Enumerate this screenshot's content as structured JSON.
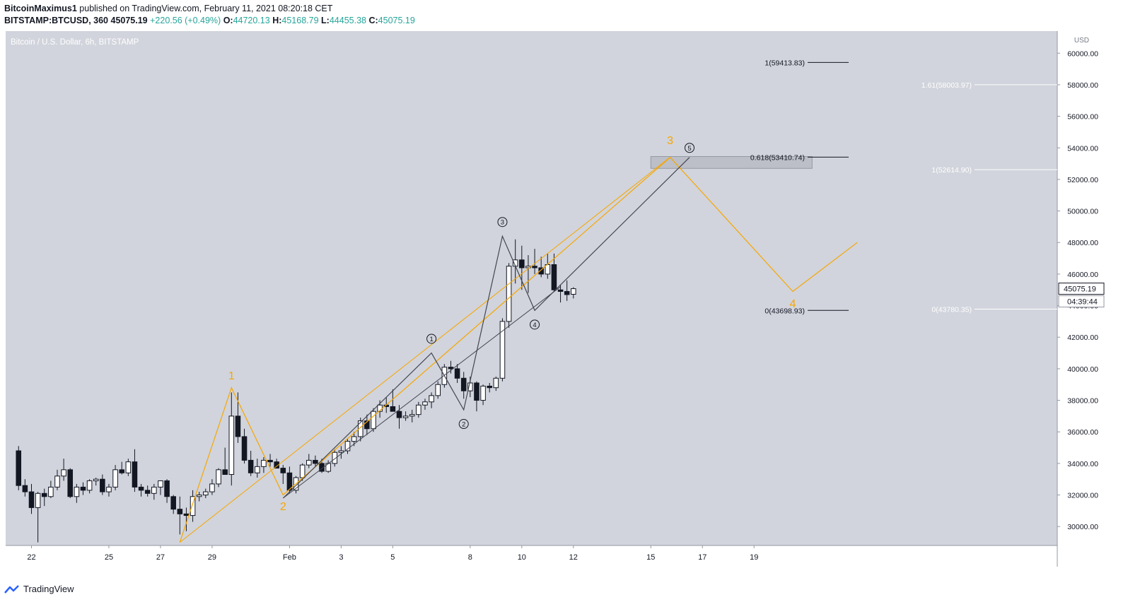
{
  "header": {
    "author": "BitcoinMaximus1",
    "published": "published on TradingView.com, February 11, 2021 08:20:18 CET",
    "symbol": "BITSTAMP:BTCUSD, 360",
    "last": "45075.19",
    "change": "+220.56 (+0.49%)",
    "o_label": "O:",
    "o": "44720.13",
    "h_label": "H:",
    "h": "45168.79",
    "l_label": "L:",
    "l": "44455.38",
    "c_label": "C:",
    "c": "45075.19"
  },
  "footer": {
    "brand": "TradingView"
  },
  "chart_data": {
    "type": "candlestick",
    "title": "Bitcoin / U.S. Dollar, 6h, BITSTAMP",
    "currency": "USD",
    "ylim": [
      28800,
      61400
    ],
    "xlim": [
      -2.0,
      161.0
    ],
    "y_ticks": [
      30000,
      32000,
      34000,
      36000,
      38000,
      40000,
      42000,
      44000,
      46000,
      48000,
      50000,
      52000,
      54000,
      56000,
      58000,
      60000
    ],
    "x_ticks": [
      {
        "label": "22",
        "x": 2
      },
      {
        "label": "25",
        "x": 14
      },
      {
        "label": "27",
        "x": 22
      },
      {
        "label": "29",
        "x": 30
      },
      {
        "label": "Feb",
        "x": 42
      },
      {
        "label": "3",
        "x": 50
      },
      {
        "label": "5",
        "x": 58
      },
      {
        "label": "8",
        "x": 70
      },
      {
        "label": "10",
        "x": 78
      },
      {
        "label": "12",
        "x": 86
      },
      {
        "label": "15",
        "x": 98
      },
      {
        "label": "17",
        "x": 106
      },
      {
        "label": "19",
        "x": 114
      }
    ],
    "last_price_label": "45075.19",
    "countdown_label": "04:39:44",
    "candles": [
      [
        34800,
        35100,
        32300,
        32600
      ],
      [
        32600,
        33000,
        31900,
        32200
      ],
      [
        32200,
        32700,
        30800,
        31200
      ],
      [
        31200,
        32200,
        29000,
        32100
      ],
      [
        32100,
        32400,
        31300,
        31900
      ],
      [
        31900,
        32900,
        31800,
        32500
      ],
      [
        32500,
        33600,
        32300,
        33200
      ],
      [
        33200,
        34300,
        32900,
        33600
      ],
      [
        33600,
        33700,
        31800,
        31900
      ],
      [
        31900,
        32700,
        31500,
        32500
      ],
      [
        32500,
        32800,
        32000,
        32300
      ],
      [
        32300,
        33000,
        32100,
        32900
      ],
      [
        32900,
        33100,
        32600,
        33000
      ],
      [
        33000,
        33300,
        32000,
        32200
      ],
      [
        32200,
        32700,
        31900,
        32500
      ],
      [
        32500,
        33900,
        32300,
        33600
      ],
      [
        33600,
        34100,
        33300,
        33400
      ],
      [
        33400,
        34300,
        33200,
        34100
      ],
      [
        34100,
        34900,
        32200,
        32500
      ],
      [
        32500,
        32700,
        31900,
        32300
      ],
      [
        32300,
        32600,
        31900,
        32100
      ],
      [
        32100,
        32700,
        31700,
        32500
      ],
      [
        32500,
        32900,
        32000,
        32900
      ],
      [
        32900,
        33000,
        31500,
        31900
      ],
      [
        31900,
        32000,
        30800,
        31100
      ],
      [
        31100,
        31900,
        29500,
        30800
      ],
      [
        30800,
        31200,
        29700,
        30700
      ],
      [
        30700,
        32300,
        30300,
        31900
      ],
      [
        31900,
        32200,
        31600,
        32000
      ],
      [
        32000,
        32400,
        31800,
        32200
      ],
      [
        32200,
        33000,
        32000,
        32700
      ],
      [
        32700,
        33700,
        32500,
        33600
      ],
      [
        33600,
        35000,
        33300,
        33300
      ],
      [
        33300,
        38500,
        32600,
        37000
      ],
      [
        37000,
        38500,
        35300,
        35700
      ],
      [
        35700,
        36200,
        34000,
        34200
      ],
      [
        34200,
        34800,
        33200,
        33400
      ],
      [
        33400,
        34300,
        33100,
        33800
      ],
      [
        33800,
        34400,
        33400,
        34200
      ],
      [
        34200,
        34600,
        33800,
        34100
      ],
      [
        34100,
        34300,
        33700,
        33700
      ],
      [
        33700,
        33900,
        32700,
        33400
      ],
      [
        33400,
        33800,
        32100,
        32300
      ],
      [
        32300,
        33200,
        32100,
        33100
      ],
      [
        33100,
        34000,
        32900,
        33900
      ],
      [
        33900,
        34600,
        33700,
        34200
      ],
      [
        34200,
        34500,
        33800,
        34000
      ],
      [
        34000,
        34300,
        33400,
        33500
      ],
      [
        33500,
        34200,
        33400,
        34000
      ],
      [
        34000,
        34900,
        33800,
        34700
      ],
      [
        34700,
        35100,
        34300,
        34800
      ],
      [
        34800,
        35600,
        34600,
        35400
      ],
      [
        35400,
        36000,
        35100,
        35700
      ],
      [
        35700,
        36900,
        35400,
        36700
      ],
      [
        36700,
        37100,
        35800,
        36200
      ],
      [
        36200,
        37500,
        36000,
        37300
      ],
      [
        37300,
        38000,
        36900,
        37700
      ],
      [
        37700,
        38200,
        37200,
        37600
      ],
      [
        37600,
        38700,
        37400,
        37300
      ],
      [
        37300,
        37700,
        36200,
        36900
      ],
      [
        36900,
        37300,
        36700,
        37000
      ],
      [
        37000,
        37400,
        36600,
        37100
      ],
      [
        37100,
        37900,
        36900,
        37700
      ],
      [
        37700,
        38100,
        37400,
        37900
      ],
      [
        37900,
        38500,
        37500,
        38300
      ],
      [
        38300,
        39200,
        38100,
        39000
      ],
      [
        39000,
        40300,
        38800,
        40100
      ],
      [
        40100,
        40500,
        39700,
        40000
      ],
      [
        40000,
        40300,
        39100,
        39400
      ],
      [
        39400,
        39800,
        38100,
        38600
      ],
      [
        38600,
        39500,
        38200,
        39100
      ],
      [
        39100,
        39200,
        37300,
        38000
      ],
      [
        38000,
        39000,
        37700,
        38900
      ],
      [
        38900,
        39100,
        38500,
        38800
      ],
      [
        38800,
        39500,
        38600,
        39400
      ],
      [
        39400,
        43200,
        39200,
        43000
      ],
      [
        43000,
        46700,
        42600,
        46500
      ],
      [
        46500,
        48200,
        45400,
        46900
      ],
      [
        46900,
        47800,
        45000,
        46400
      ],
      [
        46400,
        47200,
        44800,
        46500
      ],
      [
        46500,
        47600,
        46000,
        46400
      ],
      [
        46400,
        47100,
        45800,
        46000
      ],
      [
        46000,
        47300,
        45700,
        46600
      ],
      [
        46600,
        47300,
        44900,
        45000
      ],
      [
        45000,
        45300,
        44200,
        44900
      ],
      [
        44900,
        45600,
        44300,
        44700
      ],
      [
        44720.13,
        45168.79,
        44455.38,
        45075.19
      ]
    ],
    "orange_path": [
      [
        25,
        29000
      ],
      [
        33,
        38800
      ],
      [
        41,
        32000
      ],
      [
        101,
        53400
      ],
      [
        120,
        44900
      ],
      [
        130,
        48000
      ]
    ],
    "grey_path": [
      [
        41,
        31800
      ],
      [
        64,
        41000
      ],
      [
        69,
        37400
      ],
      [
        75,
        48400
      ],
      [
        80,
        43700
      ],
      [
        104,
        53400
      ]
    ],
    "orange_trend": [
      [
        25,
        29000
      ],
      [
        101,
        53410
      ]
    ],
    "grey_trend": [
      [
        41,
        31800
      ],
      [
        84,
        45200
      ]
    ],
    "wave_labels_orange": [
      {
        "text": "1",
        "x": 33,
        "y": 39600
      },
      {
        "text": "2",
        "x": 41,
        "y": 31300
      },
      {
        "text": "3",
        "x": 101,
        "y": 54500
      },
      {
        "text": "4",
        "x": 120,
        "y": 44150
      }
    ],
    "wave_labels_grey": [
      {
        "text": "1",
        "x": 64,
        "y": 41900
      },
      {
        "text": "2",
        "x": 69,
        "y": 36500
      },
      {
        "text": "3",
        "x": 75,
        "y": 49300
      },
      {
        "text": "4",
        "x": 80,
        "y": 42800
      },
      {
        "text": "5",
        "x": 104,
        "y": 54000
      }
    ],
    "fib_left": [
      {
        "label": "1(59413.83)",
        "price": 59413.83
      },
      {
        "label": "0.618(53410.74)",
        "price": 53410.74
      },
      {
        "label": "0(43698.93)",
        "price": 43698.93
      }
    ],
    "fib_right": [
      {
        "label": "1.61(58003.97)",
        "price": 58003.97
      },
      {
        "label": "1(52614.90)",
        "price": 52614.9
      },
      {
        "label": "0(43780.35)",
        "price": 43780.35
      }
    ],
    "zone": {
      "x0": 98,
      "x1": 123,
      "y0": 52700,
      "y1": 53450
    }
  }
}
